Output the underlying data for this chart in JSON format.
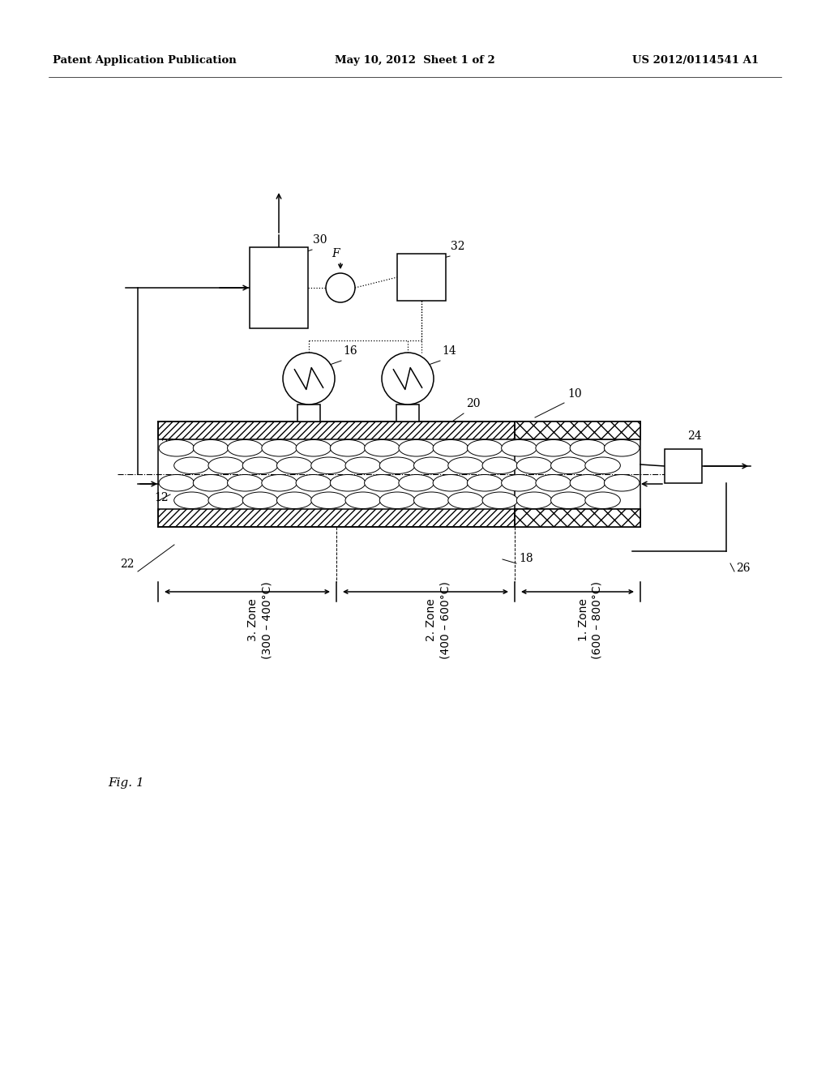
{
  "header_left": "Patent Application Publication",
  "header_center": "May 10, 2012  Sheet 1 of 2",
  "header_right": "US 2012/0114541 A1",
  "fig_label": "Fig. 1",
  "bg_color": "#ffffff",
  "lc": "#000000",
  "zone_labels": [
    "3. Zone\n(300 – 400°C)",
    "2. Zone\n(400 – 600°C)",
    "1. Zone\n(600 – 800°C)"
  ]
}
